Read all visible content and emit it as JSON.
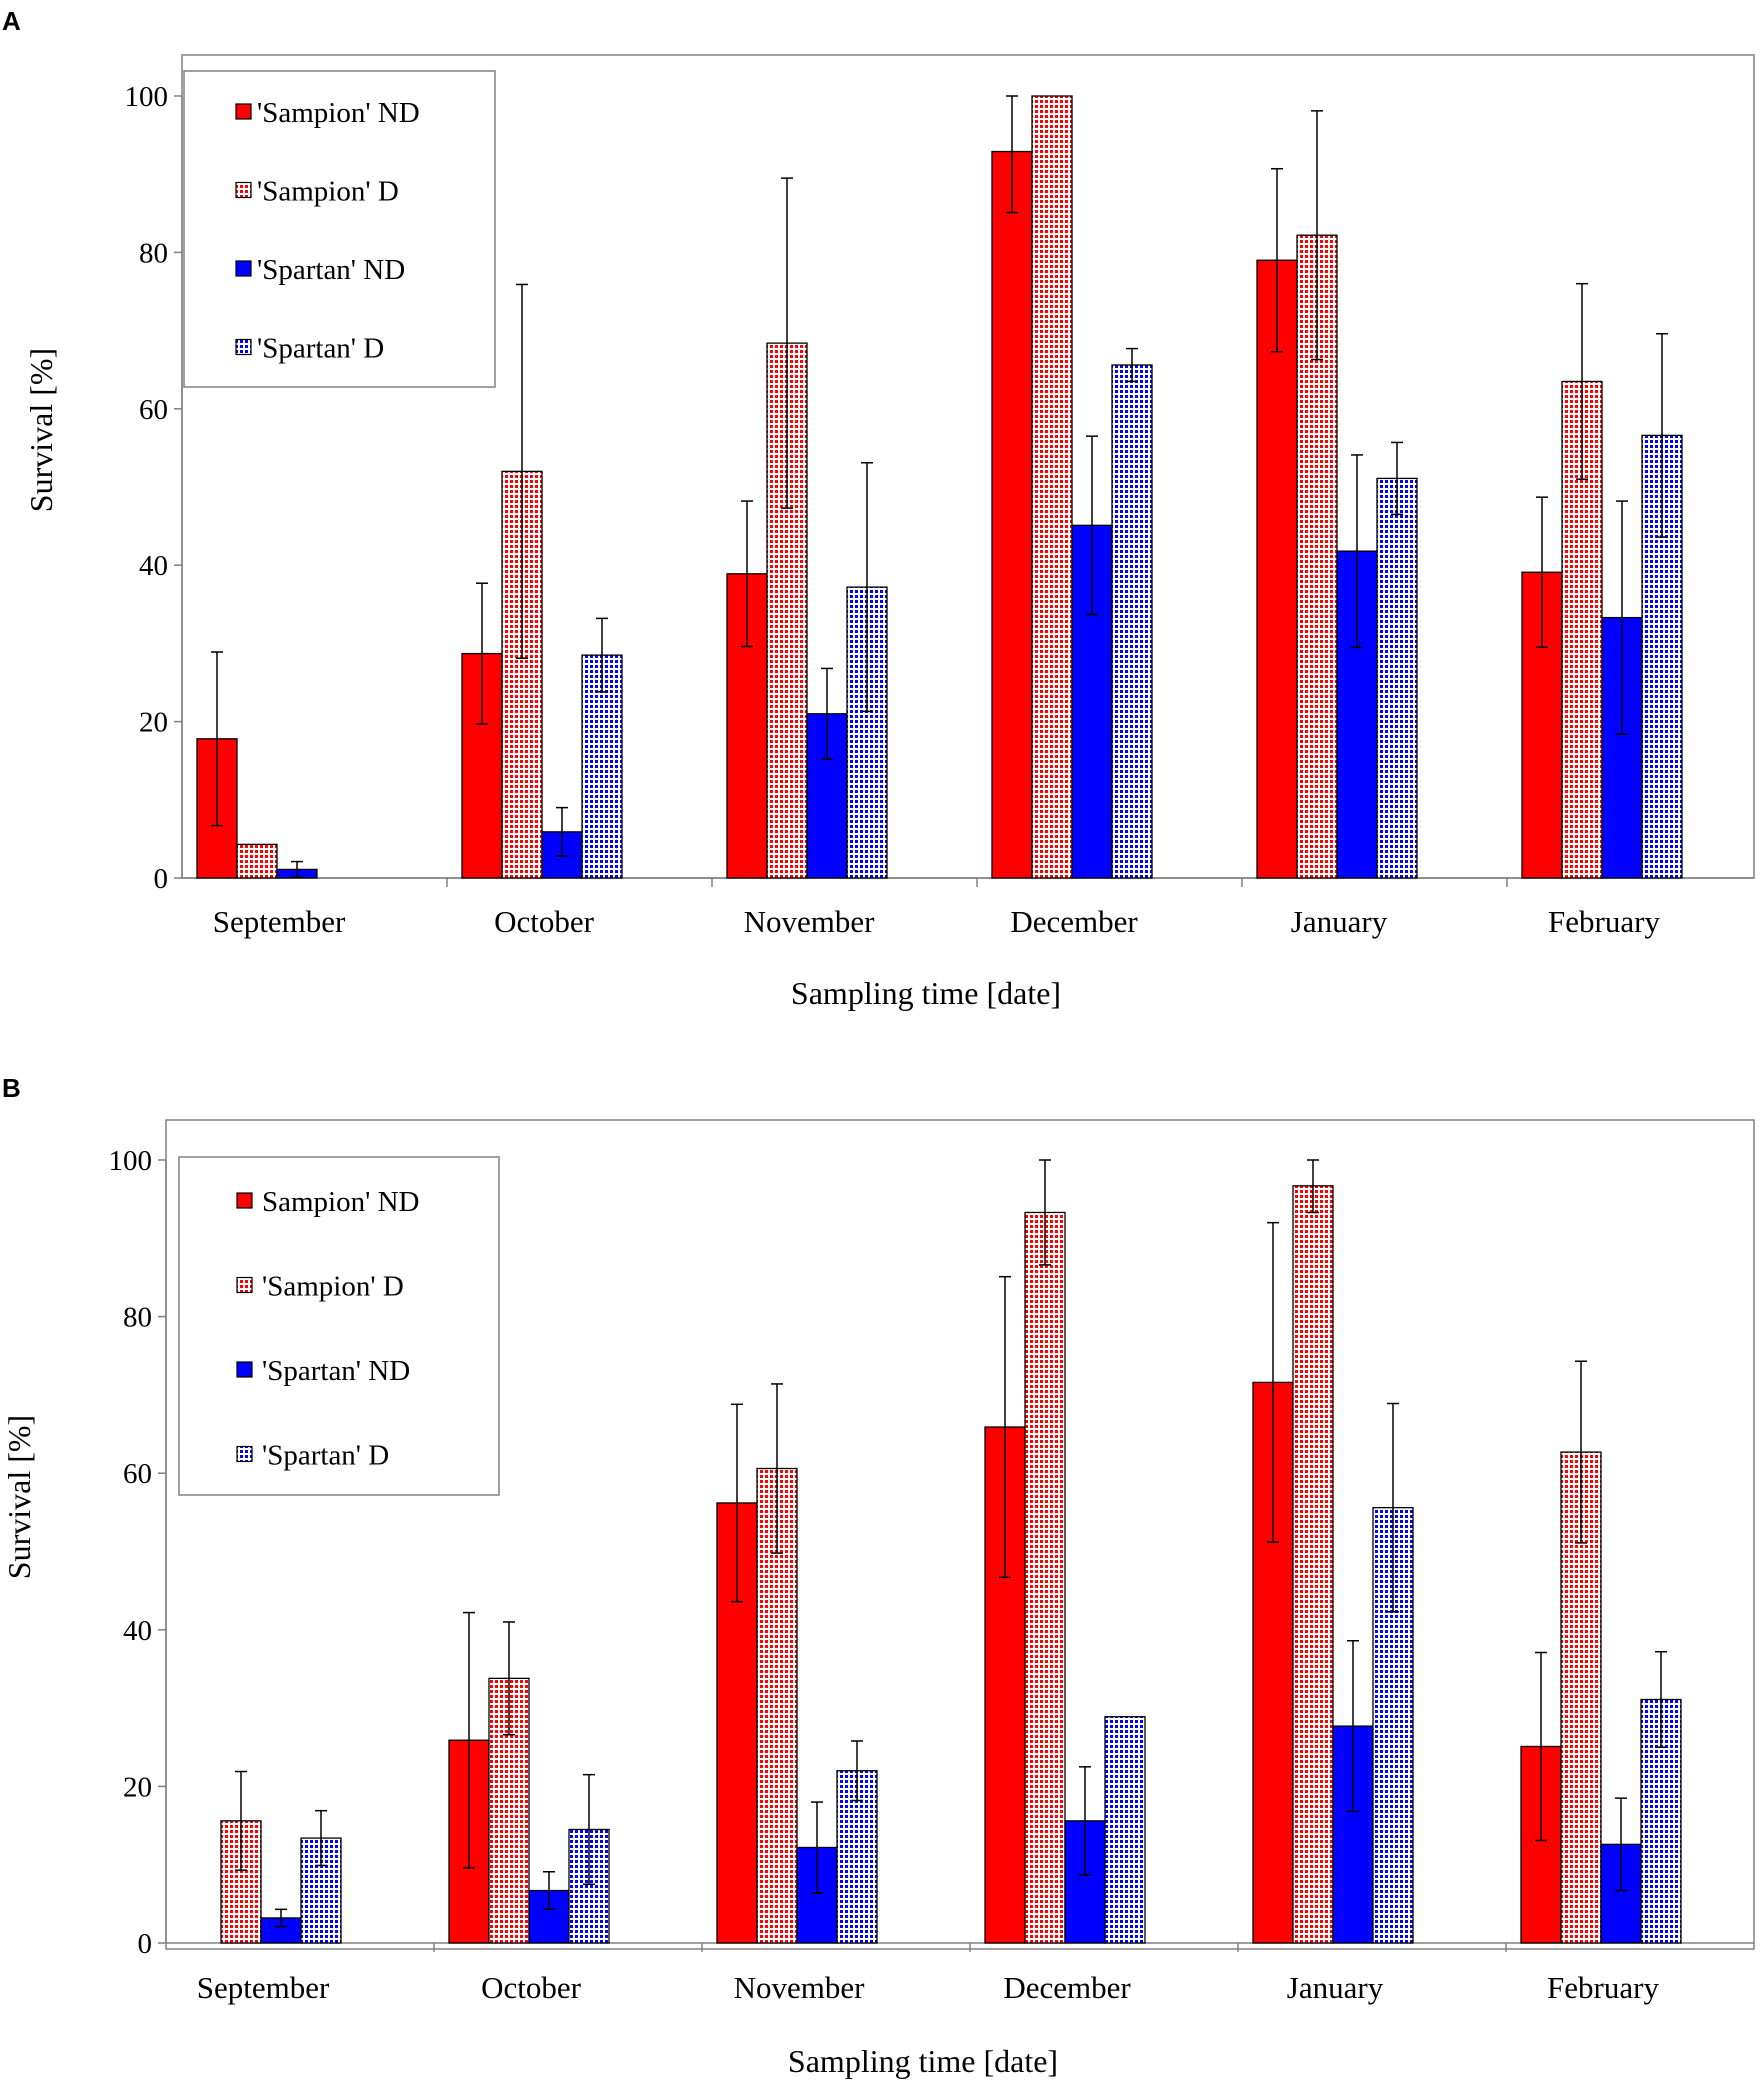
{
  "colors": {
    "sampion": "#ff0000",
    "spartan": "#0000ff",
    "axis": "#000000",
    "errorbar": "#000000"
  },
  "panels": [
    {
      "letter": "A",
      "chart_data": {
        "type": "bar",
        "categories": [
          "September",
          "October",
          "November",
          "December",
          "January",
          "February"
        ],
        "xlabel": "Sampling time [date]",
        "ylabel": "Survival [%]",
        "ylim": [
          0,
          100
        ],
        "yticks": [
          "0",
          "20",
          "40",
          "60",
          "80",
          "100"
        ],
        "legend_position": "top-left",
        "series": [
          {
            "name": "'Sampion' ND",
            "color": "#ff0000",
            "pattern": false,
            "values": [
              17.8,
              28.7,
              38.9,
              92.9,
              79.0,
              39.1
            ],
            "errors": [
              11.1,
              9.0,
              9.3,
              7.8,
              11.7,
              9.6
            ]
          },
          {
            "name": "'Sampion' D",
            "color": "#ff0000",
            "pattern": true,
            "values": [
              4.3,
              52.0,
              68.4,
              100.0,
              82.2,
              63.5
            ],
            "errors": [
              0,
              23.9,
              21.1,
              0,
              15.9,
              12.5
            ]
          },
          {
            "name": "'Spartan' ND",
            "color": "#0000ff",
            "pattern": false,
            "values": [
              1.1,
              5.9,
              21.0,
              45.1,
              41.8,
              33.3
            ],
            "errors": [
              1.0,
              3.1,
              5.8,
              11.4,
              12.3,
              14.9
            ]
          },
          {
            "name": "'Spartan' D",
            "color": "#0000ff",
            "pattern": true,
            "values": [
              null,
              28.5,
              37.2,
              65.6,
              51.1,
              56.6
            ],
            "errors": [
              0,
              4.7,
              15.9,
              2.1,
              4.6,
              13.0
            ]
          }
        ]
      }
    },
    {
      "letter": "B",
      "chart_data": {
        "type": "bar",
        "categories": [
          "September",
          "October",
          "November",
          "December",
          "January",
          "February"
        ],
        "xlabel": "Sampling time [date]",
        "ylabel": "Survival [%]",
        "ylim": [
          0,
          100
        ],
        "yticks": [
          "0",
          "20",
          "40",
          "60",
          "80",
          "100"
        ],
        "legend_position": "top-left",
        "series": [
          {
            "name": "Sampion' ND",
            "color": "#ff0000",
            "pattern": false,
            "values": [
              null,
              25.9,
              56.2,
              65.9,
              71.6,
              25.1
            ],
            "errors": [
              0,
              16.3,
              12.6,
              19.2,
              20.4,
              12.0
            ]
          },
          {
            "name": "'Sampion' D",
            "color": "#ff0000",
            "pattern": true,
            "values": [
              15.6,
              33.8,
              60.6,
              93.3,
              96.7,
              62.7
            ],
            "errors": [
              6.3,
              7.2,
              10.8,
              6.7,
              3.4,
              11.6
            ]
          },
          {
            "name": "'Spartan' ND",
            "color": "#0000ff",
            "pattern": false,
            "values": [
              3.2,
              6.7,
              12.2,
              15.6,
              27.7,
              12.6
            ],
            "errors": [
              1.1,
              2.4,
              5.8,
              6.9,
              10.9,
              5.9
            ]
          },
          {
            "name": "'Spartan' D",
            "color": "#0000ff",
            "pattern": true,
            "values": [
              13.4,
              14.5,
              22.0,
              28.9,
              55.6,
              31.1
            ],
            "errors": [
              3.5,
              7.0,
              3.8,
              0,
              13.3,
              6.1
            ]
          }
        ]
      }
    }
  ]
}
